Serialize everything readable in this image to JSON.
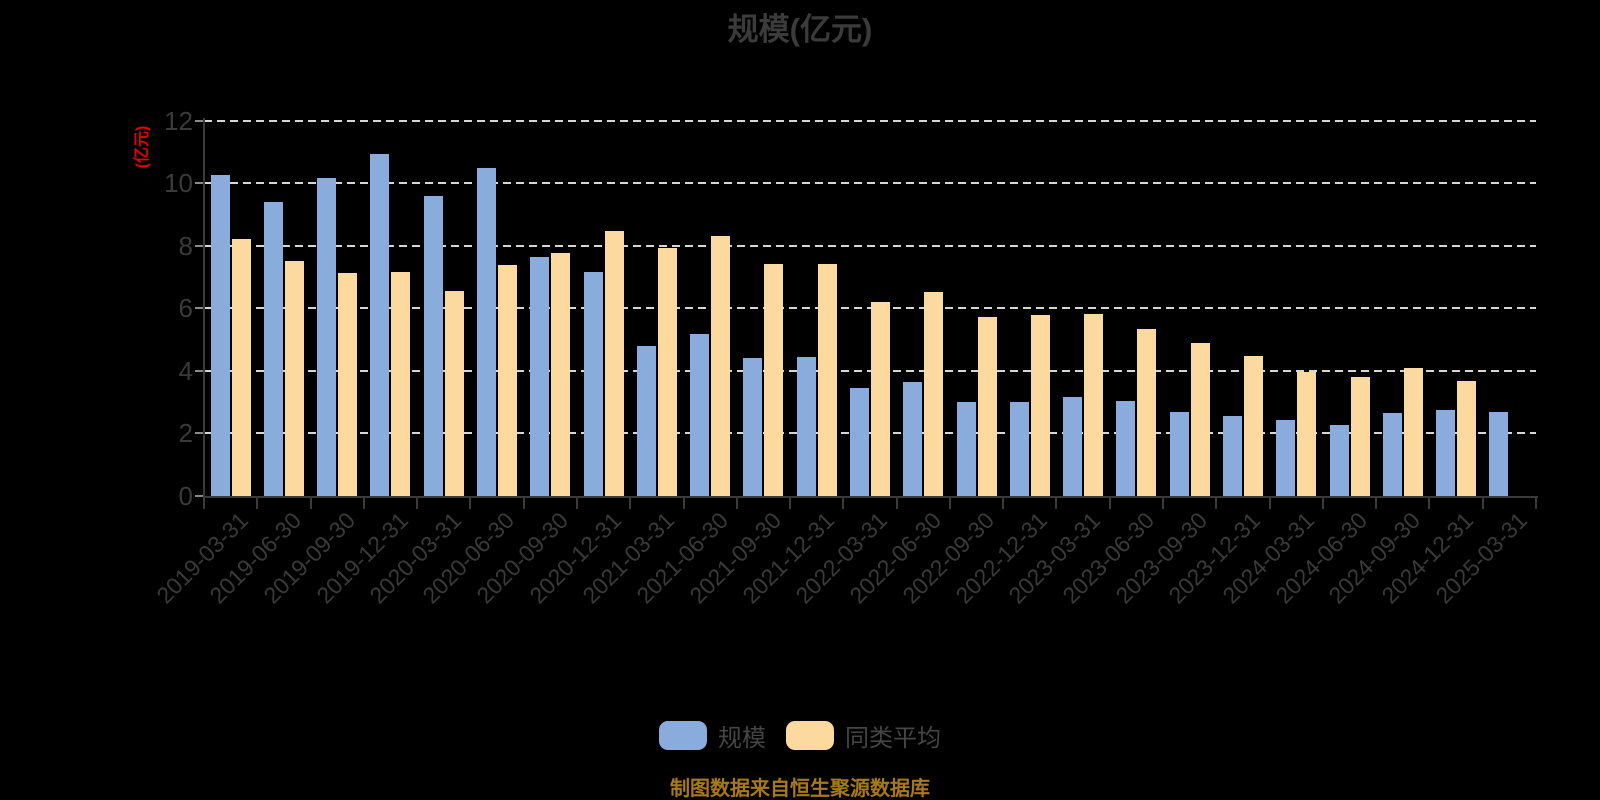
{
  "title": "规模(亿元)",
  "y_axis": {
    "unit_label": "(亿元)",
    "ticks": [
      0,
      2,
      4,
      6,
      8,
      10,
      12
    ]
  },
  "legend": [
    {
      "name": "规模",
      "color": "#8aacdc"
    },
    {
      "name": "同类平均",
      "color": "#fcd99e"
    }
  ],
  "footer": "制图数据来自恒生聚源数据库",
  "colors": {
    "background": "#000000",
    "bar_scale": "#8aacdc",
    "bar_average": "#fcd99e",
    "grid": "#d6d6d6",
    "axis": "#3a3a3a",
    "unit_label": "#e60000",
    "footer_text": "#a8791b"
  },
  "chart_data": {
    "type": "bar",
    "title": "规模(亿元)",
    "ylabel": "(亿元)",
    "ylim": [
      0,
      12
    ],
    "ytick_step": 2,
    "grid": true,
    "legend_position": "bottom",
    "categories": [
      "2019-03-31",
      "2019-06-30",
      "2019-09-30",
      "2019-12-31",
      "2020-03-31",
      "2020-06-30",
      "2020-09-30",
      "2020-12-31",
      "2021-03-31",
      "2021-06-30",
      "2021-09-30",
      "2021-12-31",
      "2022-03-31",
      "2022-06-30",
      "2022-09-30",
      "2022-12-31",
      "2023-03-31",
      "2023-06-30",
      "2023-09-30",
      "2023-12-31",
      "2024-03-31",
      "2024-06-30",
      "2024-09-30",
      "2024-12-31",
      "2025-03-31"
    ],
    "series": [
      {
        "name": "规模",
        "color": "#8aacdc",
        "values": [
          10.26,
          9.4,
          10.16,
          10.93,
          9.58,
          10.47,
          7.63,
          7.15,
          4.79,
          5.17,
          4.41,
          4.43,
          3.46,
          3.64,
          3.01,
          3.01,
          3.17,
          3.05,
          2.7,
          2.57,
          2.44,
          2.27,
          2.64,
          2.76,
          2.67
        ]
      },
      {
        "name": "同类平均",
        "color": "#fcd99e",
        "values": [
          8.22,
          7.52,
          7.14,
          7.16,
          6.54,
          7.37,
          7.76,
          8.47,
          7.94,
          8.3,
          7.4,
          7.43,
          6.19,
          6.52,
          5.71,
          5.77,
          5.81,
          5.33,
          4.9,
          4.48,
          3.95,
          3.79,
          4.08,
          3.68,
          null
        ]
      }
    ]
  }
}
